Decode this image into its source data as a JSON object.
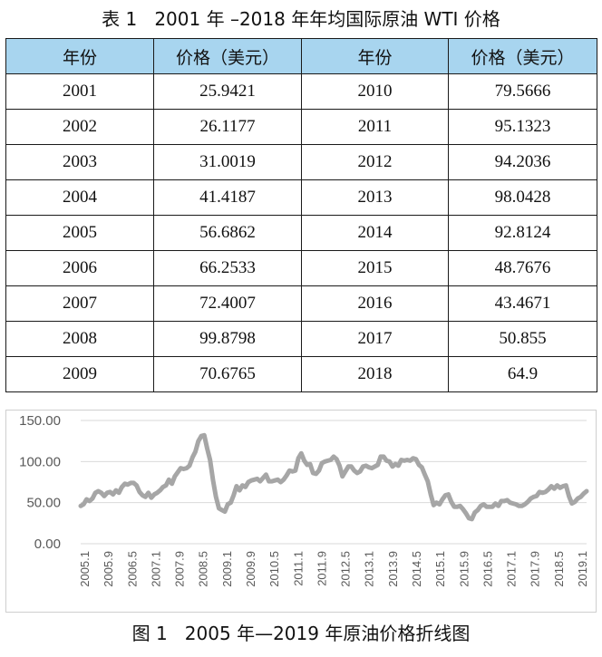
{
  "table": {
    "title": "表 1   2001 年 –2018 年年均国际原油 WTI 价格",
    "headers": [
      "年份",
      "价格（美元）",
      "年份",
      "价格（美元）"
    ],
    "rows": [
      [
        "2001",
        "25.9421",
        "2010",
        "79.5666"
      ],
      [
        "2002",
        "26.1177",
        "2011",
        "95.1323"
      ],
      [
        "2003",
        "31.0019",
        "2012",
        "94.2036"
      ],
      [
        "2004",
        "41.4187",
        "2013",
        "98.0428"
      ],
      [
        "2005",
        "56.6862",
        "2014",
        "92.8124"
      ],
      [
        "2006",
        "66.2533",
        "2015",
        "48.7676"
      ],
      [
        "2007",
        "72.4007",
        "2016",
        "43.4671"
      ],
      [
        "2008",
        "99.8798",
        "2017",
        "50.855"
      ],
      [
        "2009",
        "70.6765",
        "2018",
        "64.9"
      ]
    ],
    "header_color": "#a8d5ef"
  },
  "chart_data": {
    "type": "line",
    "title": "",
    "caption": "图 1   2005 年—2019 年原油价格折线图",
    "xlabel": "",
    "ylabel": "",
    "ylim": [
      0,
      150
    ],
    "yticks": [
      "0.00",
      "50.00",
      "100.00",
      "150.00"
    ],
    "x_tick_labels": [
      "2005.1",
      "2005.9",
      "2006.5",
      "2007.1",
      "2007.9",
      "2008.5",
      "2009.1",
      "2009.9",
      "2010.5",
      "2011.1",
      "2011.9",
      "2012.5",
      "2013.1",
      "2013.9",
      "2014.5",
      "2015.1",
      "2015.9",
      "2016.5",
      "2017.1",
      "2017.9",
      "2018.5",
      "2019.1"
    ],
    "grid": "horizontal",
    "legend": "none",
    "line_color": "#a6a6a6",
    "series": [
      {
        "values": [
          46,
          48,
          54,
          52,
          55,
          62,
          64,
          62,
          58,
          62,
          63,
          60,
          65,
          62,
          69,
          73,
          72,
          74,
          74,
          71,
          63,
          59,
          57,
          62,
          56,
          60,
          62,
          65,
          69,
          71,
          78,
          73,
          82,
          87,
          92,
          91,
          92,
          95,
          105,
          112,
          125,
          131,
          132,
          116,
          102,
          77,
          57,
          43,
          41,
          39,
          48,
          50,
          59,
          70,
          65,
          71,
          69,
          75,
          77,
          78,
          79,
          76,
          80,
          84,
          76,
          76,
          77,
          78,
          75,
          78,
          83,
          89,
          88,
          89,
          104,
          110,
          101,
          96,
          97,
          86,
          85,
          89,
          98,
          100,
          101,
          102,
          106,
          103,
          95,
          82,
          88,
          94,
          94,
          89,
          86,
          88,
          94,
          95,
          93,
          92,
          94,
          96,
          106,
          106,
          101,
          100,
          94,
          97,
          95,
          102,
          101,
          102,
          101,
          104,
          103,
          96,
          93,
          84,
          76,
          60,
          47,
          50,
          48,
          54,
          59,
          60,
          51,
          45,
          45,
          46,
          42,
          37,
          31,
          30,
          38,
          41,
          46,
          48,
          45,
          45,
          45,
          49,
          46,
          52,
          52,
          53,
          50,
          49,
          48,
          46,
          46,
          48,
          51,
          55,
          57,
          58,
          63,
          62,
          63,
          66,
          70,
          67,
          71,
          68,
          70,
          71,
          58,
          49,
          51,
          55,
          57,
          61,
          64
        ]
      }
    ]
  }
}
